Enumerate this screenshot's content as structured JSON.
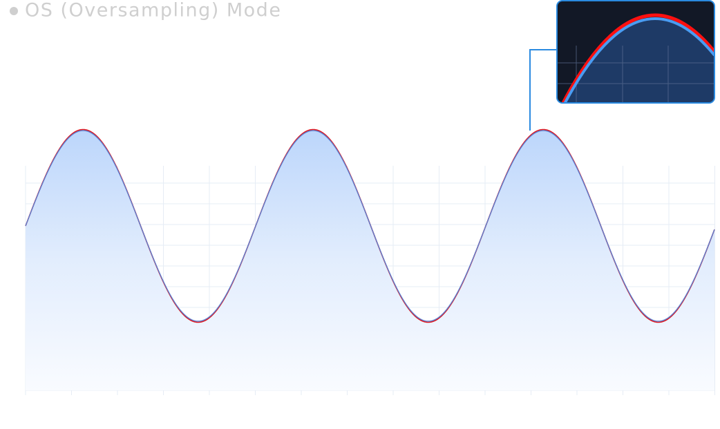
{
  "title": "OS (Oversampling) Mode"
}
